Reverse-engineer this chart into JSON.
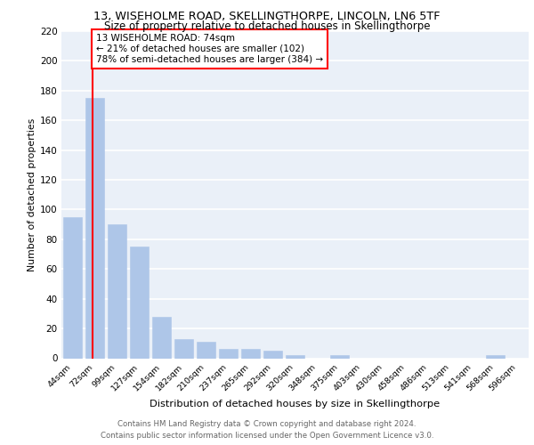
{
  "title1": "13, WISEHOLME ROAD, SKELLINGTHORPE, LINCOLN, LN6 5TF",
  "title2": "Size of property relative to detached houses in Skellingthorpe",
  "xlabel": "Distribution of detached houses by size in Skellingthorpe",
  "ylabel": "Number of detached properties",
  "footer1": "Contains HM Land Registry data © Crown copyright and database right 2024.",
  "footer2": "Contains public sector information licensed under the Open Government Licence v3.0.",
  "bar_labels": [
    "44sqm",
    "72sqm",
    "99sqm",
    "127sqm",
    "154sqm",
    "182sqm",
    "210sqm",
    "237sqm",
    "265sqm",
    "292sqm",
    "320sqm",
    "348sqm",
    "375sqm",
    "403sqm",
    "430sqm",
    "458sqm",
    "486sqm",
    "513sqm",
    "541sqm",
    "568sqm",
    "596sqm"
  ],
  "bar_values": [
    95,
    175,
    90,
    75,
    28,
    13,
    11,
    6,
    6,
    5,
    2,
    0,
    2,
    0,
    0,
    0,
    0,
    0,
    0,
    2,
    0
  ],
  "bar_color": "#aec6e8",
  "bar_edge_color": "#aec6e8",
  "annotation_text1": "13 WISEHOLME ROAD: 74sqm",
  "annotation_text2": "← 21% of detached houses are smaller (102)",
  "annotation_text3": "78% of semi-detached houses are larger (384) →",
  "vline_color": "red",
  "vline_x": 0.88,
  "background_color": "#eaf0f8",
  "grid_color": "white",
  "ylim": [
    0,
    220
  ],
  "yticks": [
    0,
    20,
    40,
    60,
    80,
    100,
    120,
    140,
    160,
    180,
    200,
    220
  ]
}
